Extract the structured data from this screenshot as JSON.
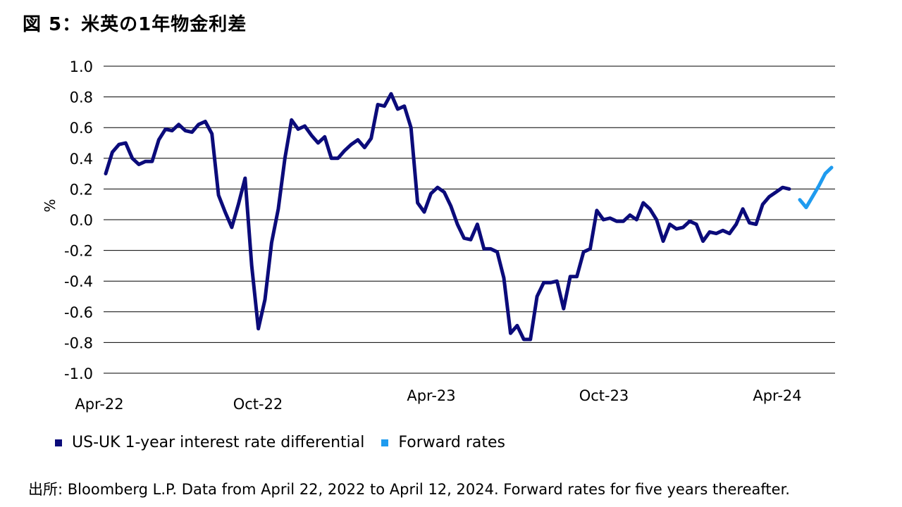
{
  "title": "図 5：米英の1年物金利差",
  "source": "出所: Bloomberg L.P. Data from April 22, 2022 to April 12, 2024. Forward rates for five years thereafter.",
  "legend": {
    "series1": "US-UK 1-year interest rate differential",
    "series2": "Forward rates"
  },
  "colors": {
    "series1": "#0b0b7a",
    "series2": "#1f9bef",
    "grid": "#000000"
  },
  "chart_data": {
    "type": "line",
    "ylabel": "%",
    "xlabel": "",
    "ylim": [
      -1.0,
      1.0
    ],
    "yticks": [
      "1.0",
      "0.8",
      "0.6",
      "0.4",
      "0.2",
      "0.0",
      "-0.2",
      "-0.4",
      "-0.6",
      "-0.8",
      "-1.0"
    ],
    "ytick_values": [
      1.0,
      0.8,
      0.6,
      0.4,
      0.2,
      0.0,
      -0.2,
      -0.4,
      -0.6,
      -0.8,
      -1.0
    ],
    "xticks": [
      "Apr-22",
      "Oct-22",
      "Apr-23",
      "Oct-23",
      "Apr-24"
    ],
    "grid": true,
    "series": [
      {
        "name": "US-UK 1-year interest rate differential",
        "values": [
          0.3,
          0.44,
          0.49,
          0.5,
          0.4,
          0.36,
          0.38,
          0.38,
          0.52,
          0.59,
          0.58,
          0.62,
          0.58,
          0.57,
          0.62,
          0.64,
          0.56,
          0.16,
          0.05,
          -0.05,
          0.1,
          0.27,
          -0.3,
          -0.71,
          -0.52,
          -0.15,
          0.07,
          0.4,
          0.65,
          0.59,
          0.61,
          0.55,
          0.5,
          0.54,
          0.4,
          0.4,
          0.45,
          0.49,
          0.52,
          0.47,
          0.53,
          0.75,
          0.74,
          0.82,
          0.72,
          0.74,
          0.6,
          0.11,
          0.05,
          0.17,
          0.21,
          0.18,
          0.09,
          -0.03,
          -0.12,
          -0.13,
          -0.03,
          -0.19,
          -0.19,
          -0.21,
          -0.38,
          -0.74,
          -0.69,
          -0.78,
          -0.78,
          -0.5,
          -0.41,
          -0.41,
          -0.4,
          -0.58,
          -0.37,
          -0.37,
          -0.21,
          -0.19,
          0.06,
          0.0,
          0.01,
          -0.01,
          -0.01,
          0.03,
          0.0,
          0.11,
          0.07,
          0.0,
          -0.14,
          -0.03,
          -0.06,
          -0.05,
          -0.01,
          -0.03,
          -0.14,
          -0.08,
          -0.09,
          -0.07,
          -0.09,
          -0.03,
          0.07,
          -0.02,
          -0.03,
          0.1,
          0.15,
          0.18,
          0.21,
          0.2
        ]
      },
      {
        "name": "Forward rates",
        "values": [
          0.13,
          0.08,
          0.15,
          0.22,
          0.3,
          0.34
        ]
      }
    ]
  }
}
